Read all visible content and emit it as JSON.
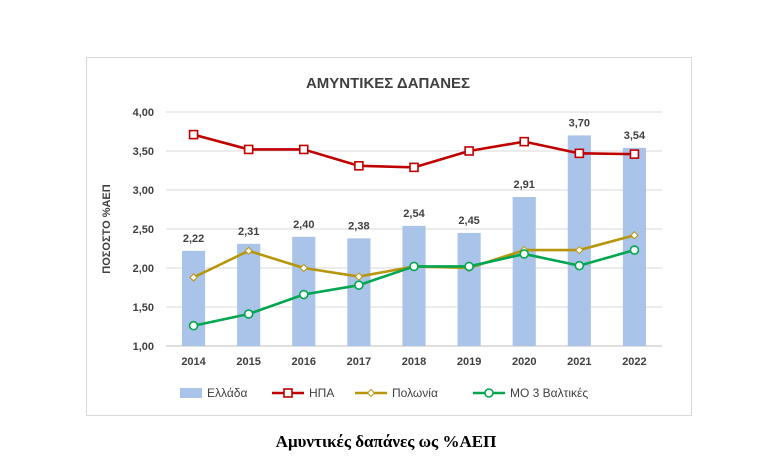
{
  "chart_data": {
    "type": "bar",
    "title": "ΑΜΥΝΤΙΚΕΣ ΔΑΠΑΝΕΣ",
    "xlabel": "",
    "ylabel": "ΠΟΣΟΣΤΟ %ΑΕΠ",
    "ylim": [
      1.0,
      4.0
    ],
    "yticks": [
      "1,00",
      "1,50",
      "2,00",
      "2,50",
      "3,00",
      "3,50",
      "4,00"
    ],
    "grid": true,
    "legend_position": "bottom",
    "categories": [
      "2014",
      "2015",
      "2016",
      "2017",
      "2018",
      "2019",
      "2020",
      "2021",
      "2022"
    ],
    "series": [
      {
        "name": "Ελλάδα",
        "type": "bar",
        "color": "#a9c4e8",
        "values": [
          2.22,
          2.31,
          2.4,
          2.38,
          2.54,
          2.45,
          2.91,
          3.7,
          3.54
        ],
        "data_labels": [
          "2,22",
          "2,31",
          "2,40",
          "2,38",
          "2,54",
          "2,45",
          "2,91",
          "3,70",
          "3,54"
        ]
      },
      {
        "name": "ΗΠΑ",
        "type": "line",
        "color": "#c00000",
        "marker": "square",
        "values": [
          3.71,
          3.52,
          3.52,
          3.31,
          3.29,
          3.5,
          3.62,
          3.47,
          3.46
        ]
      },
      {
        "name": "Πολωνία",
        "type": "line",
        "color": "#b8960c",
        "marker": "diamond",
        "values": [
          1.88,
          2.22,
          2.0,
          1.89,
          2.02,
          2.0,
          2.23,
          2.23,
          2.42
        ]
      },
      {
        "name": "ΜΟ 3 Βαλτικές",
        "type": "line",
        "color": "#00a650",
        "marker": "circle",
        "values": [
          1.26,
          1.41,
          1.66,
          1.78,
          2.02,
          2.02,
          2.18,
          2.03,
          2.23
        ]
      }
    ]
  },
  "caption": "Αμυντικές δαπάνες ως %ΑΕΠ"
}
